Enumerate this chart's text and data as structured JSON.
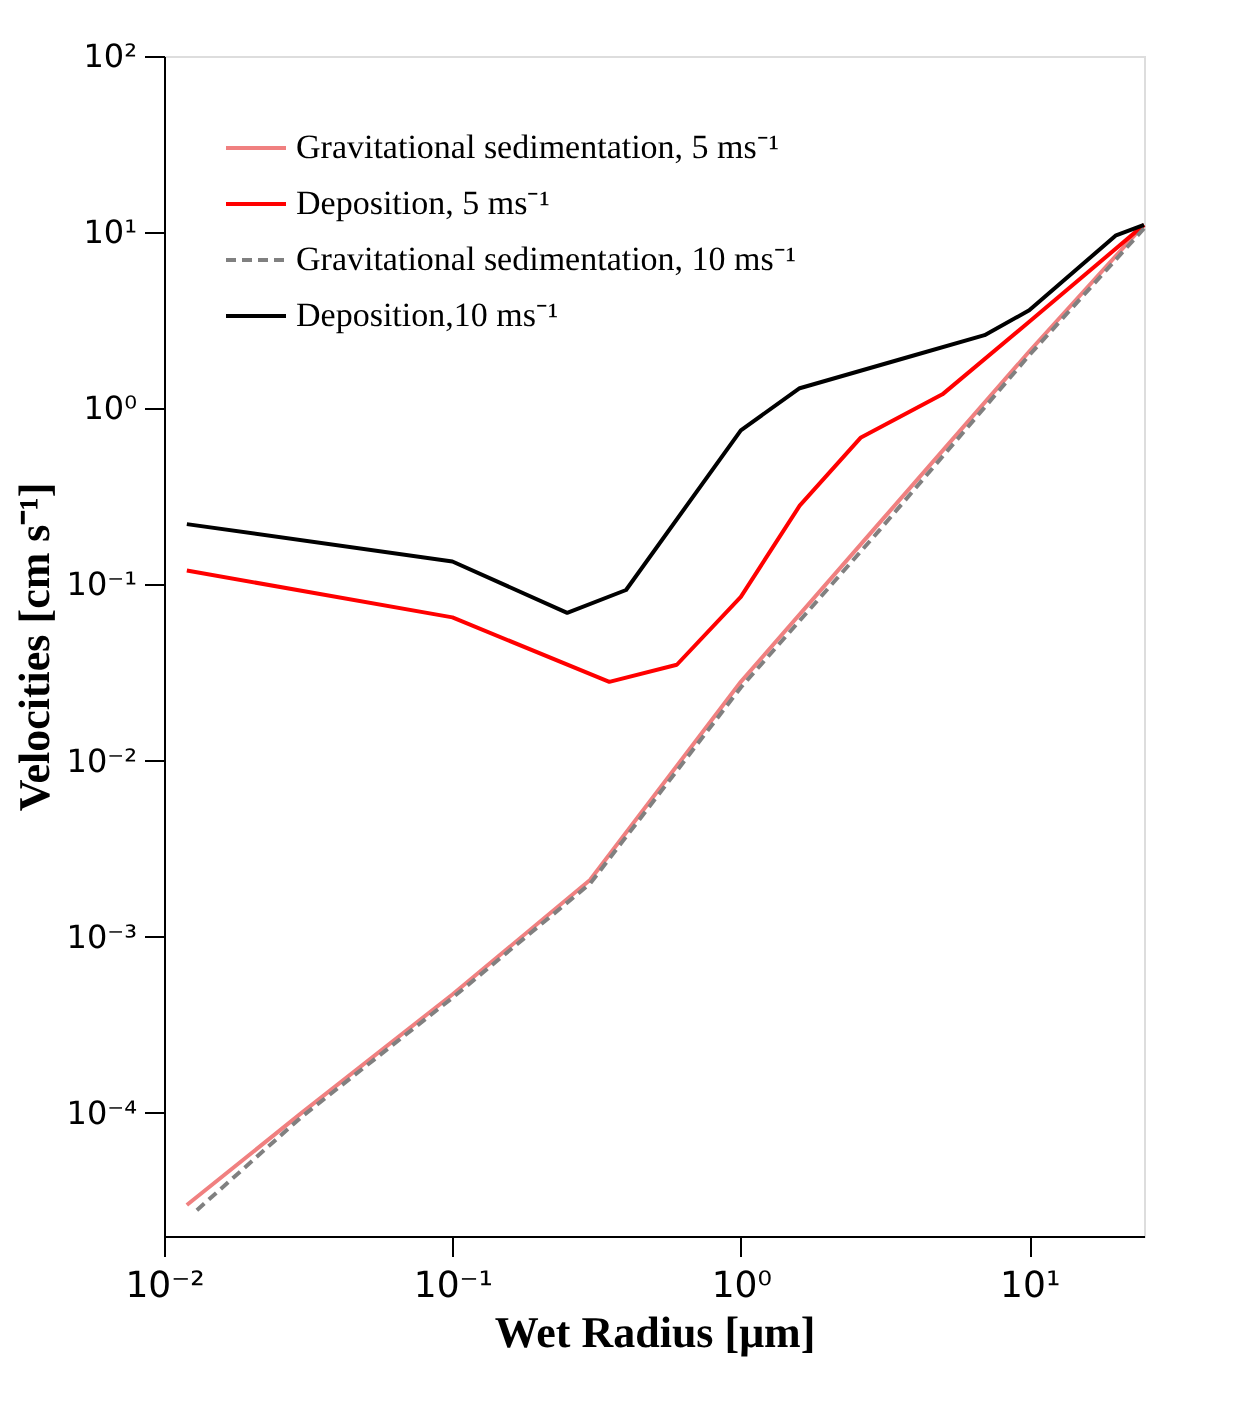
{
  "chart_data": {
    "type": "line",
    "xlabel": "Wet Radius [μm]",
    "ylabel": "Velocities [cm s⁻¹]",
    "log": "xy",
    "grid": false,
    "legend": "top left",
    "marker": "none",
    "xlim": [
      0.01,
      25
    ],
    "ylim": [
      2e-05,
      100
    ],
    "xticks": [
      {
        "value": 0.01,
        "label": "10⁻²"
      },
      {
        "value": 0.1,
        "label": "10⁻¹"
      },
      {
        "value": 1,
        "label": "10⁰"
      },
      {
        "value": 10,
        "label": "10¹"
      }
    ],
    "yticks": [
      {
        "value": 0.0001,
        "label": "10⁻⁴"
      },
      {
        "value": 0.001,
        "label": "10⁻³"
      },
      {
        "value": 0.01,
        "label": "10⁻²"
      },
      {
        "value": 0.1,
        "label": "10⁻¹"
      },
      {
        "value": 1,
        "label": "10⁰"
      },
      {
        "value": 10,
        "label": "10¹"
      },
      {
        "value": 100,
        "label": "10²"
      }
    ],
    "series": [
      {
        "name": "Gravitational sedimentation, 5 ms⁻¹",
        "color": "#f08080",
        "line_style": "solid",
        "x": [
          0.012,
          0.03,
          0.1,
          0.3,
          1,
          3,
          10,
          25
        ],
        "values": [
          3e-05,
          0.0001,
          0.00047,
          0.0021,
          0.028,
          0.22,
          2.1,
          11
        ]
      },
      {
        "name": "Deposition, 5 ms⁻¹",
        "color": "#ff0000",
        "line_style": "solid",
        "x": [
          0.012,
          0.1,
          0.35,
          0.6,
          1,
          1.6,
          2.6,
          5,
          10,
          25
        ],
        "values": [
          0.12,
          0.065,
          0.028,
          0.035,
          0.085,
          0.28,
          0.68,
          1.2,
          3.1,
          11
        ]
      },
      {
        "name": "Gravitational sedimentation, 10 ms⁻¹",
        "color": "#808080",
        "line_style": "dashed",
        "x": [
          0.013,
          0.03,
          0.1,
          0.3,
          1,
          3,
          10,
          25
        ],
        "values": [
          2.8e-05,
          9.5e-05,
          0.00045,
          0.002,
          0.026,
          0.2,
          2,
          10.5
        ]
      },
      {
        "name": "Deposition,10 ms⁻¹",
        "color": "#000000",
        "line_style": "solid",
        "x": [
          0.012,
          0.1,
          0.25,
          0.4,
          1,
          1.6,
          4,
          7,
          10,
          20,
          25
        ],
        "values": [
          0.22,
          0.135,
          0.069,
          0.093,
          0.75,
          1.3,
          2,
          2.6,
          3.6,
          9.6,
          11
        ]
      }
    ]
  }
}
